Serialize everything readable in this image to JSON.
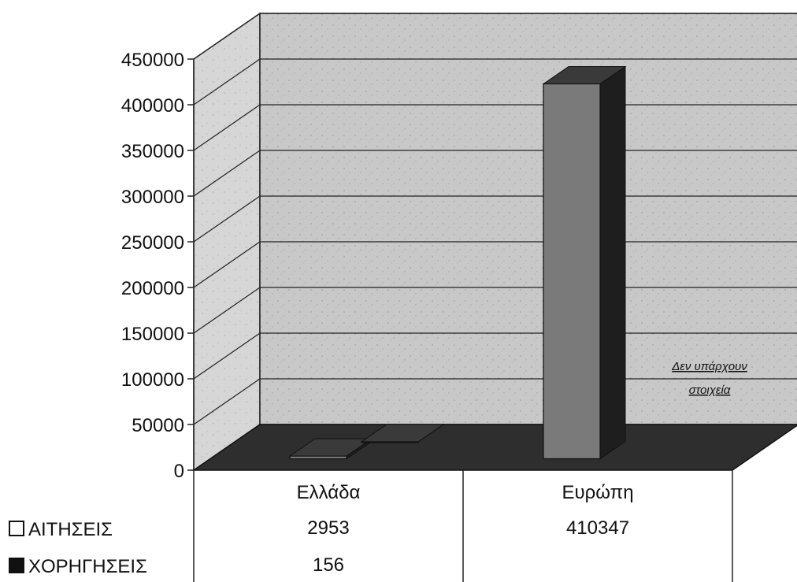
{
  "chart_data": {
    "type": "bar",
    "categories": [
      "Ελλάδα",
      "Ευρώπη"
    ],
    "series": [
      {
        "name": "ΑΙΤΗΣΕΙΣ",
        "values": [
          2953,
          410347
        ],
        "color": "#7a7a7a"
      },
      {
        "name": "ΧΟΡΗΓΗΣΕΙΣ",
        "values": [
          156,
          null
        ],
        "color": "#2a2a2a"
      }
    ],
    "table": [
      [
        "2953",
        "410347"
      ],
      [
        "156",
        ""
      ]
    ],
    "yticks": [
      "0",
      "50000",
      "100000",
      "150000",
      "200000",
      "250000",
      "300000",
      "350000",
      "400000",
      "450000"
    ],
    "ylim": [
      0,
      450000
    ],
    "grid": true,
    "legend": "data-table-left",
    "annotation": [
      "Δεν υπάρχουν",
      "στοιχεία"
    ]
  }
}
